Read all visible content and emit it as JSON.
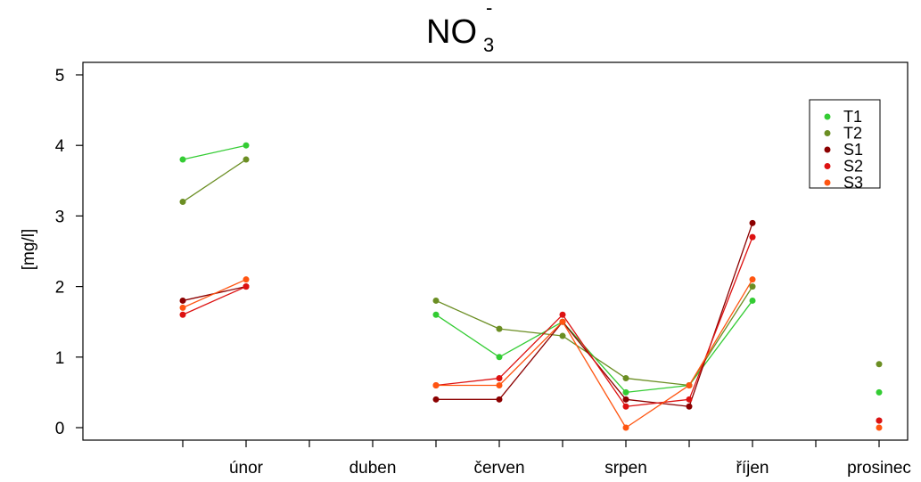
{
  "chart_data": {
    "type": "line",
    "title": "NO",
    "title_subscript": "3",
    "title_superscript": "-",
    "xlabel": "",
    "ylabel": "[mg/l]",
    "ylim": [
      0,
      5
    ],
    "yticks": [
      0,
      1,
      2,
      3,
      4,
      5
    ],
    "xlim": [
      1.5,
      13.5
    ],
    "x_tick_positions": [
      2,
      3,
      4,
      5,
      6,
      7,
      8,
      9,
      10,
      11,
      12,
      13
    ],
    "x_labels": [
      {
        "x": 3,
        "label": "únor"
      },
      {
        "x": 5,
        "label": "duben"
      },
      {
        "x": 7,
        "label": "červen"
      },
      {
        "x": 9,
        "label": "srpen"
      },
      {
        "x": 11,
        "label": "říjen"
      },
      {
        "x": 13,
        "label": "prosinec"
      }
    ],
    "grid": false,
    "legend_position": "top-right",
    "series": [
      {
        "name": "T1",
        "color": "#33cc33",
        "points": [
          [
            2,
            3.8
          ],
          [
            3,
            4.0
          ],
          [
            6,
            1.6
          ],
          [
            7,
            1.0
          ],
          [
            8,
            1.5
          ],
          [
            9,
            0.5
          ],
          [
            10,
            0.6
          ],
          [
            11,
            1.8
          ],
          [
            13,
            0.5
          ]
        ],
        "segments": [
          [
            0,
            1
          ],
          [
            2,
            3
          ],
          [
            3,
            4
          ],
          [
            4,
            5
          ],
          [
            5,
            6
          ],
          [
            6,
            7
          ]
        ]
      },
      {
        "name": "T2",
        "color": "#6b8e23",
        "points": [
          [
            2,
            3.2
          ],
          [
            3,
            3.8
          ],
          [
            6,
            1.8
          ],
          [
            7,
            1.4
          ],
          [
            8,
            1.3
          ],
          [
            9,
            0.7
          ],
          [
            10,
            0.6
          ],
          [
            11,
            2.0
          ],
          [
            13,
            0.9
          ]
        ],
        "segments": [
          [
            0,
            1
          ],
          [
            2,
            3
          ],
          [
            3,
            4
          ],
          [
            4,
            5
          ],
          [
            5,
            6
          ],
          [
            6,
            7
          ]
        ]
      },
      {
        "name": "S1",
        "color": "#8b0000",
        "points": [
          [
            2,
            1.8
          ],
          [
            3,
            2.0
          ],
          [
            6,
            0.4
          ],
          [
            7,
            0.4
          ],
          [
            8,
            1.5
          ],
          [
            9,
            0.4
          ],
          [
            10,
            0.3
          ],
          [
            11,
            2.9
          ],
          [
            13,
            0.1
          ]
        ],
        "segments": [
          [
            0,
            1
          ],
          [
            2,
            3
          ],
          [
            3,
            4
          ],
          [
            4,
            5
          ],
          [
            5,
            6
          ],
          [
            6,
            7
          ]
        ]
      },
      {
        "name": "S2",
        "color": "#dd1111",
        "points": [
          [
            2,
            1.6
          ],
          [
            3,
            2.0
          ],
          [
            6,
            0.6
          ],
          [
            7,
            0.7
          ],
          [
            8,
            1.6
          ],
          [
            9,
            0.3
          ],
          [
            10,
            0.4
          ],
          [
            11,
            2.7
          ],
          [
            13,
            0.1
          ]
        ],
        "segments": [
          [
            0,
            1
          ],
          [
            2,
            3
          ],
          [
            3,
            4
          ],
          [
            4,
            5
          ],
          [
            5,
            6
          ],
          [
            6,
            7
          ]
        ]
      },
      {
        "name": "S3",
        "color": "#ff5511",
        "points": [
          [
            2,
            1.7
          ],
          [
            3,
            2.1
          ],
          [
            6,
            0.6
          ],
          [
            7,
            0.6
          ],
          [
            8,
            1.5
          ],
          [
            9,
            0.0
          ],
          [
            10,
            0.6
          ],
          [
            11,
            2.1
          ],
          [
            13,
            0.0
          ]
        ],
        "segments": [
          [
            0,
            1
          ],
          [
            2,
            3
          ],
          [
            3,
            4
          ],
          [
            4,
            5
          ],
          [
            5,
            6
          ],
          [
            6,
            7
          ]
        ]
      }
    ]
  }
}
